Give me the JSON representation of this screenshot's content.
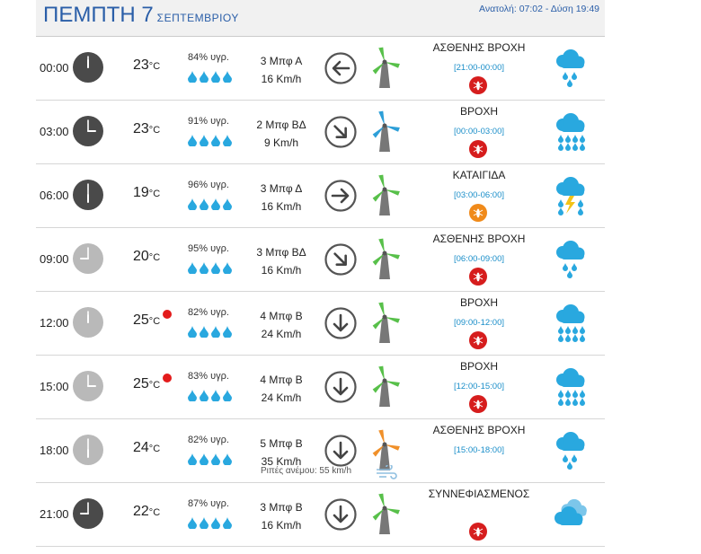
{
  "header": {
    "day": "ΠΕΜΠΤΗ 7",
    "month": "ΣΕΠΤΕΜΒΡΙΟΥ",
    "sun": "Ανατολή: 07:02 - Δύση 19:49"
  },
  "units": {
    "temp": "°C"
  },
  "colors": {
    "accent": "#2a5ea8",
    "drop": "#29a8df",
    "range": "#1a8ec9",
    "hot_dot": "#e31b1b",
    "clock_night": "#4a4a4a",
    "clock_day": "#b9b9b9",
    "blade_green": "#58c04a",
    "blade_blue": "#2d9fd8",
    "blade_orange": "#f0902a",
    "mosquito_red": "#d61d1d",
    "mosquito_orange": "#f08a1a"
  },
  "rows": [
    {
      "time": "00:00",
      "clock": "night",
      "hour": 0,
      "temp": "23",
      "hot": false,
      "humidity": "84% υγρ.",
      "bf": "3 Μπφ Α",
      "kmh": "16 Km/h",
      "dir": "left",
      "blade": "green",
      "cond": "ΑΣΘΕΝΗΣ ΒΡΟΧΗ",
      "range": "[21:00-00:00]",
      "mosquito": "red",
      "wx": "light-rain",
      "gusts": null
    },
    {
      "time": "03:00",
      "clock": "night",
      "hour": 3,
      "temp": "23",
      "hot": false,
      "humidity": "91% υγρ.",
      "bf": "2 Μπφ ΒΔ",
      "kmh": "9 Km/h",
      "dir": "down-right",
      "blade": "blue",
      "cond": "ΒΡΟΧΗ",
      "range": "[00:00-03:00]",
      "mosquito": "red",
      "wx": "rain",
      "gusts": null
    },
    {
      "time": "06:00",
      "clock": "night",
      "hour": 6,
      "temp": "19",
      "hot": false,
      "humidity": "96% υγρ.",
      "bf": "3 Μπφ Δ",
      "kmh": "16 Km/h",
      "dir": "right",
      "blade": "green",
      "cond": "ΚΑΤΑΙΓΙΔΑ",
      "range": "[03:00-06:00]",
      "mosquito": "orange",
      "wx": "storm",
      "gusts": null
    },
    {
      "time": "09:00",
      "clock": "day",
      "hour": 9,
      "temp": "20",
      "hot": false,
      "humidity": "95% υγρ.",
      "bf": "3 Μπφ ΒΔ",
      "kmh": "16 Km/h",
      "dir": "down-right",
      "blade": "green",
      "cond": "ΑΣΘΕΝΗΣ ΒΡΟΧΗ",
      "range": "[06:00-09:00]",
      "mosquito": "red",
      "wx": "light-rain",
      "gusts": null
    },
    {
      "time": "12:00",
      "clock": "day",
      "hour": 12,
      "temp": "25",
      "hot": true,
      "humidity": "82% υγρ.",
      "bf": "4 Μπφ Β",
      "kmh": "24 Km/h",
      "dir": "down",
      "blade": "green",
      "cond": "ΒΡΟΧΗ",
      "range": "[09:00-12:00]",
      "mosquito": "red",
      "wx": "rain",
      "gusts": null
    },
    {
      "time": "15:00",
      "clock": "day",
      "hour": 15,
      "temp": "25",
      "hot": true,
      "humidity": "83% υγρ.",
      "bf": "4 Μπφ Β",
      "kmh": "24 Km/h",
      "dir": "down",
      "blade": "green",
      "cond": "ΒΡΟΧΗ",
      "range": "[12:00-15:00]",
      "mosquito": "red",
      "wx": "rain",
      "gusts": null
    },
    {
      "time": "18:00",
      "clock": "day",
      "hour": 18,
      "temp": "24",
      "hot": false,
      "humidity": "82% υγρ.",
      "bf": "5 Μπφ Β",
      "kmh": "35 Km/h",
      "dir": "down",
      "blade": "orange",
      "cond": "ΑΣΘΕΝΗΣ ΒΡΟΧΗ",
      "range": "[15:00-18:00]",
      "mosquito": null,
      "wx": "light-rain",
      "gusts": "Ριπές ανέμου: 55 km/h"
    },
    {
      "time": "21:00",
      "clock": "night",
      "hour": 21,
      "temp": "22",
      "hot": false,
      "humidity": "87% υγρ.",
      "bf": "3 Μπφ Β",
      "kmh": "16 Km/h",
      "dir": "down",
      "blade": "green",
      "cond": "ΣΥΝΝΕΦΙΑΣΜΕΝΟΣ",
      "range": "",
      "mosquito": "red",
      "wx": "cloudy",
      "gusts": null
    }
  ]
}
